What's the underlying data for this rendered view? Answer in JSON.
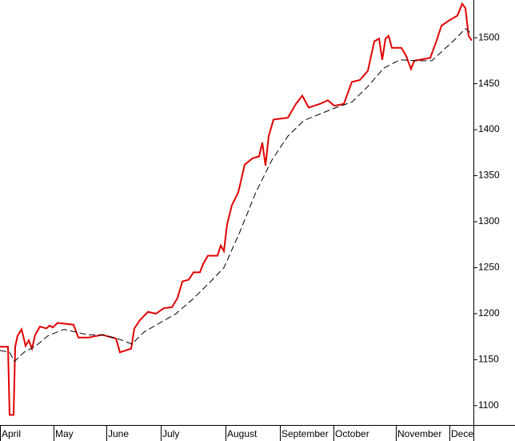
{
  "chart_data": {
    "type": "line",
    "xlim": [
      0,
      296
    ],
    "xticks": [
      {
        "value": 0,
        "label": "April"
      },
      {
        "value": 33.5,
        "label": "May"
      },
      {
        "value": 66.5,
        "label": "June"
      },
      {
        "value": 100.5,
        "label": "July"
      },
      {
        "value": 141,
        "label": "August"
      },
      {
        "value": 175,
        "label": "September"
      },
      {
        "value": 208.5,
        "label": "October"
      },
      {
        "value": 247.5,
        "label": "November"
      },
      {
        "value": 281,
        "label": "Dece"
      }
    ],
    "ylim": [
      1079,
      1541
    ],
    "yticks": [
      1100,
      1150,
      1200,
      1250,
      1300,
      1350,
      1400,
      1450,
      1500
    ],
    "series": [
      {
        "color": "#e00000",
        "dash": false,
        "x": [
          0,
          5,
          6,
          8.5,
          9.5,
          11,
          13.5,
          16,
          18,
          20,
          22,
          25,
          29,
          31,
          33,
          36,
          46,
          49,
          55,
          64,
          72.5,
          75,
          82,
          84,
          87.5,
          92.5,
          97.5,
          102.5,
          107.5,
          111,
          114,
          118,
          121,
          125,
          127,
          130,
          136,
          138,
          140,
          142,
          145,
          149,
          153,
          158,
          162,
          164,
          166,
          168,
          171,
          180,
          185,
          189,
          193,
          200,
          205,
          209,
          215,
          220,
          225,
          230,
          234,
          237,
          239,
          241,
          243,
          245,
          251,
          254,
          257,
          259,
          269,
          273,
          276,
          281,
          286,
          289,
          291,
          293,
          295
        ],
        "values": [
          1164,
          1164,
          1090,
          1090,
          1164,
          1176,
          1183,
          1165,
          1171,
          1162,
          1177,
          1186,
          1184,
          1187,
          1185,
          1190,
          1188,
          1174,
          1174,
          1177,
          1173,
          1158,
          1162,
          1184,
          1193,
          1202,
          1200,
          1206,
          1207,
          1217,
          1235,
          1237,
          1245,
          1245,
          1254,
          1263,
          1263,
          1274,
          1268,
          1297,
          1318,
          1332,
          1362,
          1369,
          1371,
          1386,
          1361,
          1393,
          1411,
          1413,
          1428,
          1437,
          1424,
          1428,
          1432,
          1426,
          1428,
          1452,
          1454,
          1464,
          1496,
          1499,
          1476,
          1499,
          1502,
          1489,
          1489,
          1480,
          1466,
          1475,
          1478,
          1497,
          1513,
          1519,
          1524,
          1537,
          1532,
          1502,
          1497
        ]
      },
      {
        "color": "#000000",
        "dash": true,
        "x": [
          0,
          6,
          9,
          15,
          22.5,
          30,
          40,
          47.5,
          55,
          65,
          75,
          82.5,
          90,
          100,
          110,
          120,
          130,
          140,
          150,
          160,
          170,
          180,
          190,
          200,
          210,
          220,
          230,
          240,
          250,
          260,
          270,
          277.5,
          285,
          291,
          295
        ],
        "values": [
          1160,
          1158,
          1148,
          1158,
          1165,
          1176,
          1183,
          1180,
          1177,
          1177,
          1172,
          1167,
          1180,
          1190,
          1200,
          1215,
          1232,
          1250,
          1289,
          1332,
          1367,
          1393,
          1410,
          1417,
          1424,
          1430,
          1447,
          1467,
          1476,
          1475,
          1475,
          1487,
          1499,
          1510,
          1504
        ]
      }
    ]
  }
}
